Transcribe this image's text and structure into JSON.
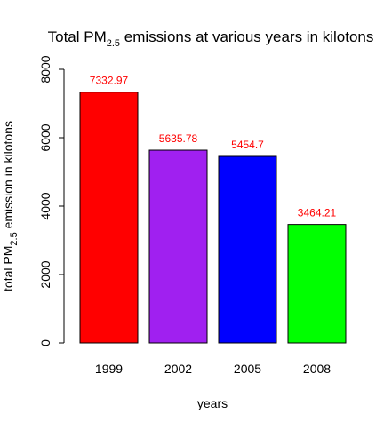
{
  "chart_data": {
    "type": "bar",
    "title": {
      "prefix": "Total PM",
      "subscript": "2.5",
      "suffix": " emissions at various years in kilotons"
    },
    "xlabel": "years",
    "ylabel": {
      "prefix": "total PM",
      "subscript": "2.5",
      "suffix": " emission in kilotons"
    },
    "categories": [
      "1999",
      "2002",
      "2005",
      "2008"
    ],
    "values": [
      7332.97,
      5635.78,
      5454.7,
      3464.21
    ],
    "data_labels": [
      "7332.97",
      "5635.78",
      "5454.7",
      "3464.21"
    ],
    "bar_colors": [
      "#ff0000",
      "#a020f0",
      "#0000ff",
      "#00ff00"
    ],
    "label_color": "#ff0000",
    "ylim": [
      0,
      8000
    ],
    "yticks": [
      0,
      2000,
      4000,
      6000,
      8000
    ],
    "ytick_labels": [
      "0",
      "2000",
      "4000",
      "6000",
      "8000"
    ],
    "grid": false,
    "legend": "none"
  }
}
